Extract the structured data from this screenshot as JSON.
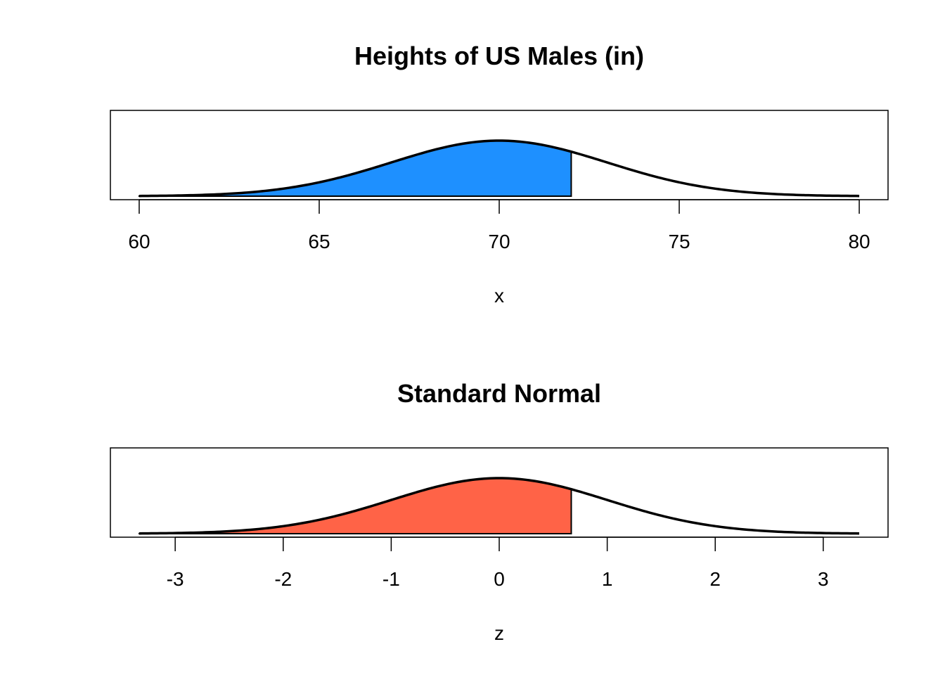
{
  "chart_data": [
    {
      "type": "area",
      "title": "Heights of US Males (in)",
      "xlabel": "x",
      "ylabel": "",
      "distribution": {
        "mean": 70,
        "sd": 3
      },
      "x_range": [
        60,
        80
      ],
      "xlim": [
        59.2,
        80.8
      ],
      "shade_upper": 72,
      "shade_color": "#1E90FF",
      "ticks": [
        60,
        65,
        70,
        75,
        80
      ],
      "tick_labels": [
        "60",
        "65",
        "70",
        "75",
        "80"
      ],
      "yaxis_shown": false
    },
    {
      "type": "area",
      "title": "Standard Normal",
      "xlabel": "z",
      "ylabel": "",
      "distribution": {
        "mean": 0,
        "sd": 1
      },
      "x_range": [
        -3.333,
        3.333
      ],
      "xlim": [
        -3.6,
        3.6
      ],
      "shade_upper": 0.667,
      "shade_color": "#FF6347",
      "ticks": [
        -3,
        -2,
        -1,
        0,
        1,
        2,
        3
      ],
      "tick_labels": [
        "-3",
        "-2",
        "-1",
        "0",
        "1",
        "2",
        "3"
      ],
      "yaxis_shown": false
    }
  ]
}
